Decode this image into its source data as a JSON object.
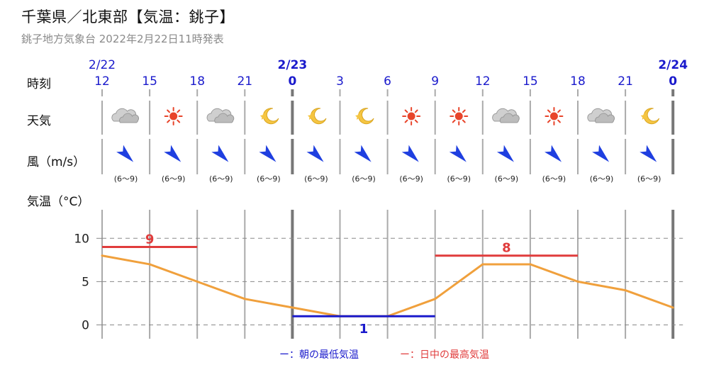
{
  "header": {
    "title": "千葉県／北東部【気温：銚子】",
    "subtitle": "銚子地方気象台 2022年2月22日11時発表"
  },
  "labels": {
    "time": "時刻",
    "weather": "天気",
    "wind": "風（m/s）",
    "temperature": "気温（°C）"
  },
  "dates": [
    {
      "label": "2/22",
      "slot": 0
    },
    {
      "label": "2/23",
      "slot": 4
    },
    {
      "label": "2/24",
      "slot": 12
    }
  ],
  "hours": [
    "12",
    "15",
    "18",
    "21",
    "0",
    "3",
    "6",
    "9",
    "12",
    "15",
    "18",
    "21",
    "0"
  ],
  "weather_icons": [
    "cloud-icon",
    "sun-icon",
    "cloud-icon",
    "moon-icon",
    "moon-icon",
    "moon-icon",
    "sun-icon",
    "sun-icon",
    "cloud-icon",
    "sun-icon",
    "cloud-icon",
    "moon-icon"
  ],
  "wind": {
    "direction": "NW",
    "speeds": [
      "(6〜9)",
      "(6〜9)",
      "(6〜9)",
      "(6〜9)",
      "(6〜9)",
      "(6〜9)",
      "(6〜9)",
      "(6〜9)",
      "(6〜9)",
      "(6〜9)",
      "(6〜9)",
      "(6〜9)"
    ]
  },
  "chart_data": {
    "type": "line",
    "x": [
      "12",
      "15",
      "18",
      "21",
      "0",
      "3",
      "6",
      "9",
      "12",
      "15",
      "18",
      "21",
      "0"
    ],
    "series": [
      {
        "values": [
          8,
          7,
          5,
          3,
          2,
          1,
          1,
          3,
          7,
          7,
          5,
          4,
          2
        ],
        "color": "#f0a03c"
      }
    ],
    "yticks": [
      0,
      5,
      10
    ],
    "ylim": [
      -1.6,
      13.3
    ],
    "grid": true,
    "min_temp": {
      "value": 1,
      "label": "1",
      "from_slot": 4,
      "to_slot": 7,
      "color": "#1a1acc"
    },
    "max_temps": [
      {
        "value": 9,
        "label": "9",
        "from_slot": 0,
        "to_slot": 2,
        "color": "#e03c3c"
      },
      {
        "value": 8,
        "label": "8",
        "from_slot": 7,
        "to_slot": 10,
        "color": "#e03c3c"
      }
    ],
    "legend": [
      {
        "label": "ー：朝の最低気温",
        "color": "#1a1acc"
      },
      {
        "label": "ー：日中の最高気温",
        "color": "#e03c3c"
      }
    ]
  },
  "colors": {
    "date_blue": "#1a1acc",
    "hour_blue": "#1a1acc",
    "grid": "#999999",
    "wind_arrow": "#1f3fe0"
  }
}
